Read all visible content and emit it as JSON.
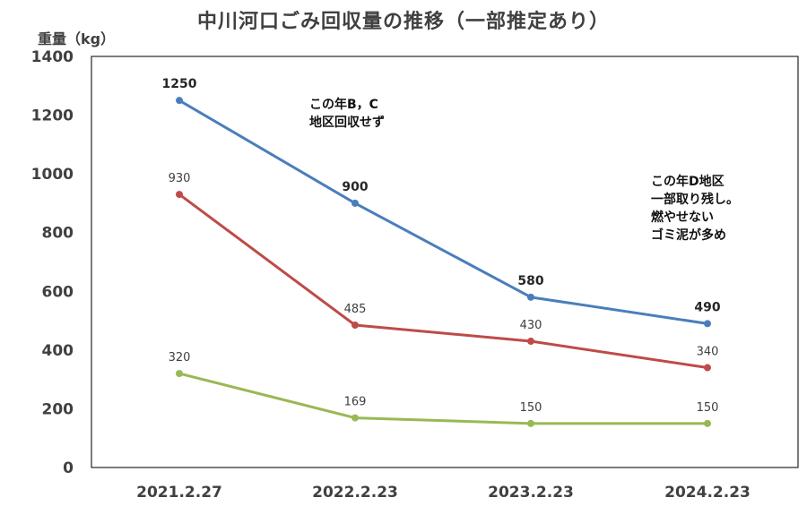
{
  "chart_data": {
    "type": "line",
    "title": "中川河口ごみ回収量の推移（一部推定あり）",
    "ylabel": "重量（kg）",
    "xlabel": "",
    "categories": [
      "2021.2.27",
      "2022.2.23",
      "2023.2.23",
      "2024.2.23"
    ],
    "ylim": [
      0,
      1400
    ],
    "yticks": [
      0,
      200,
      400,
      600,
      800,
      1000,
      1200,
      1400
    ],
    "grid": false,
    "series": [
      {
        "color": "#4a7ebb",
        "values": [
          1250,
          900,
          580,
          490
        ],
        "labels": [
          "1250",
          "900",
          "580",
          "490"
        ],
        "label_style": "bold"
      },
      {
        "color": "#be4b48",
        "values": [
          930,
          485,
          430,
          340
        ],
        "labels": [
          "930",
          "485",
          "430",
          "340"
        ],
        "label_style": "normal"
      },
      {
        "color": "#98b954",
        "values": [
          320,
          169,
          150,
          150
        ],
        "labels": [
          "320",
          "169",
          "150",
          "150"
        ],
        "label_style": "normal"
      }
    ],
    "annotations": [
      {
        "lines": [
          "この年B，C",
          "地区回収せず"
        ]
      },
      {
        "lines": [
          "この年D地区",
          "一部取り残し。",
          "燃やせない",
          "ゴミ泥が多め"
        ]
      }
    ]
  }
}
